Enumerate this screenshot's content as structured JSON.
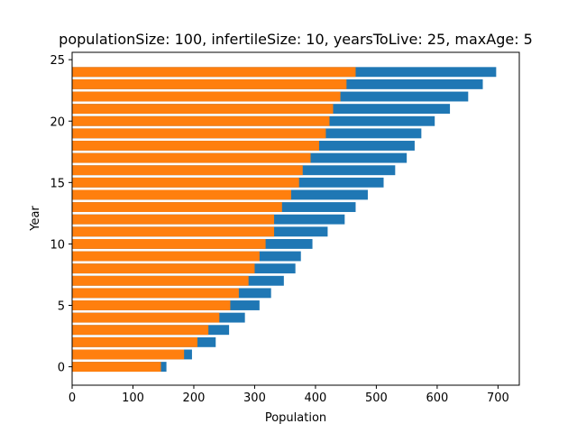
{
  "chart_data": {
    "type": "bar",
    "orientation": "horizontal",
    "stacked": false,
    "title": "populationSize: 100, infertileSize: 10, yearsToLive: 25, maxAge: 5",
    "xlabel": "Population",
    "ylabel": "Year",
    "xlim": [
      0,
      735
    ],
    "ylim": [
      -1.5,
      25.6
    ],
    "xticks": [
      "0",
      "100",
      "200",
      "300",
      "400",
      "500",
      "600",
      "700"
    ],
    "yticks": [
      "0",
      "5",
      "10",
      "15",
      "20",
      "25"
    ],
    "grid": false,
    "categories": [
      0,
      1,
      2,
      3,
      4,
      5,
      6,
      7,
      8,
      9,
      10,
      11,
      12,
      13,
      14,
      15,
      16,
      17,
      18,
      19,
      20,
      21,
      22,
      23,
      24
    ],
    "series": [
      {
        "color": "#1f77b4",
        "values": [
          155,
          197,
          236,
          258,
          284,
          308,
          327,
          348,
          367,
          376,
          395,
          420,
          448,
          466,
          486,
          512,
          531,
          550,
          563,
          574,
          596,
          621,
          651,
          675,
          697
        ]
      },
      {
        "color": "#ff7f0e",
        "values": [
          146,
          184,
          206,
          224,
          242,
          260,
          274,
          290,
          300,
          308,
          318,
          332,
          332,
          345,
          360,
          373,
          379,
          392,
          406,
          417,
          423,
          429,
          441,
          451,
          466
        ]
      }
    ]
  }
}
